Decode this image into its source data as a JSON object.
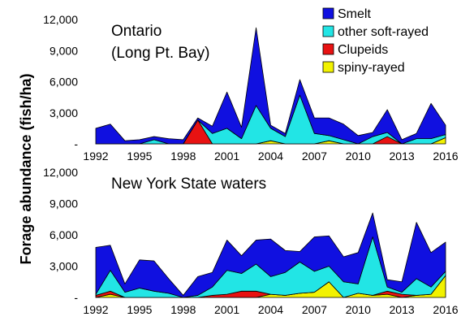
{
  "colors": {
    "smelt": "#1010e0",
    "other_soft_rayed": "#22e5e5",
    "clupeids": "#e81212",
    "spiny_rayed": "#f2f200",
    "outline": "#000000"
  },
  "chart_data": {
    "type": "area",
    "stacked": true,
    "ylabel": "Forage abundance  (fish/ha)",
    "ylim": [
      0,
      12000
    ],
    "yticks": [
      0,
      3000,
      6000,
      9000,
      12000
    ],
    "ytick_labels": [
      "-",
      "3,000",
      "6,000",
      "9,000",
      "12,000"
    ],
    "xlim": [
      1992,
      2016
    ],
    "xticks": [
      1992,
      1995,
      1998,
      2001,
      2004,
      2007,
      2010,
      2013,
      2016
    ],
    "xtick_labels": [
      "1992",
      "1995",
      "1998",
      "2001",
      "2004",
      "2007",
      "2010",
      "2013",
      "2016"
    ],
    "legend": {
      "position": "top-right",
      "entries": [
        "Smelt",
        "other soft-rayed",
        "Clupeids",
        "spiny-rayed"
      ]
    },
    "panels": [
      {
        "title_lines": [
          "Ontario",
          "(Long Pt. Bay)"
        ],
        "x": [
          1992,
          1993,
          1994,
          1995,
          1996,
          1997,
          1998,
          1999,
          2000,
          2001,
          2002,
          2003,
          2004,
          2005,
          2006,
          2007,
          2008,
          2009,
          2010,
          2011,
          2012,
          2013,
          2014,
          2015,
          2016
        ],
        "series": [
          {
            "name": "spiny-rayed",
            "color_key": "spiny_rayed",
            "values": [
              0,
              0,
              0,
              0,
              0,
              0,
              0,
              0,
              0,
              0,
              0,
              0,
              300,
              0,
              0,
              0,
              300,
              0,
              0,
              0,
              0,
              0,
              0,
              0,
              600
            ]
          },
          {
            "name": "Clupeids",
            "color_key": "clupeids",
            "values": [
              0,
              0,
              0,
              0,
              0,
              0,
              0,
              2300,
              0,
              0,
              0,
              0,
              0,
              0,
              0,
              0,
              0,
              0,
              0,
              0,
              700,
              0,
              0,
              0,
              0
            ]
          },
          {
            "name": "other soft-rayed",
            "color_key": "other_soft_rayed",
            "values": [
              0,
              0,
              0,
              0,
              400,
              0,
              0,
              0,
              1000,
              1500,
              500,
              3700,
              1200,
              700,
              4700,
              1000,
              500,
              400,
              0,
              700,
              400,
              0,
              500,
              500,
              300
            ]
          },
          {
            "name": "Smelt",
            "color_key": "smelt",
            "values": [
              1500,
              1900,
              300,
              400,
              300,
              500,
              400,
              200,
              700,
              3500,
              1100,
              7500,
              300,
              300,
              1500,
              1500,
              1700,
              1500,
              800,
              400,
              2200,
              400,
              500,
              3400,
              900
            ]
          }
        ]
      },
      {
        "title_lines": [
          "New York State waters"
        ],
        "x": [
          1992,
          1993,
          1994,
          1995,
          1996,
          1997,
          1998,
          1999,
          2000,
          2001,
          2002,
          2003,
          2004,
          2005,
          2006,
          2007,
          2008,
          2009,
          2010,
          2011,
          2012,
          2013,
          2014,
          2015,
          2016
        ],
        "series": [
          {
            "name": "spiny-rayed",
            "color_key": "spiny_rayed",
            "values": [
              0,
              300,
              0,
              0,
              0,
              0,
              0,
              0,
              0,
              0,
              0,
              0,
              300,
              200,
              400,
              500,
              1500,
              0,
              400,
              200,
              300,
              0,
              200,
              300,
              2100
            ]
          },
          {
            "name": "Clupeids",
            "color_key": "clupeids",
            "values": [
              200,
              300,
              0,
              0,
              0,
              0,
              0,
              0,
              200,
              300,
              600,
              600,
              0,
              0,
              0,
              0,
              0,
              0,
              0,
              0,
              300,
              300,
              0,
              0,
              0
            ]
          },
          {
            "name": "other soft-rayed",
            "color_key": "other_soft_rayed",
            "values": [
              100,
              2000,
              500,
              900,
              600,
              400,
              0,
              200,
              800,
              2300,
              1700,
              2600,
              1700,
              2200,
              3000,
              2000,
              1500,
              1500,
              900,
              5600,
              400,
              200,
              1600,
              700,
              400
            ]
          },
          {
            "name": "Smelt",
            "color_key": "smelt",
            "values": [
              4500,
              2400,
              800,
              2700,
              2900,
              1400,
              200,
              1800,
              1400,
              2900,
              1700,
              2300,
              3600,
              2100,
              1000,
              3300,
              2900,
              2400,
              3000,
              2300,
              700,
              1000,
              5400,
              3300,
              2800
            ]
          }
        ]
      }
    ]
  }
}
